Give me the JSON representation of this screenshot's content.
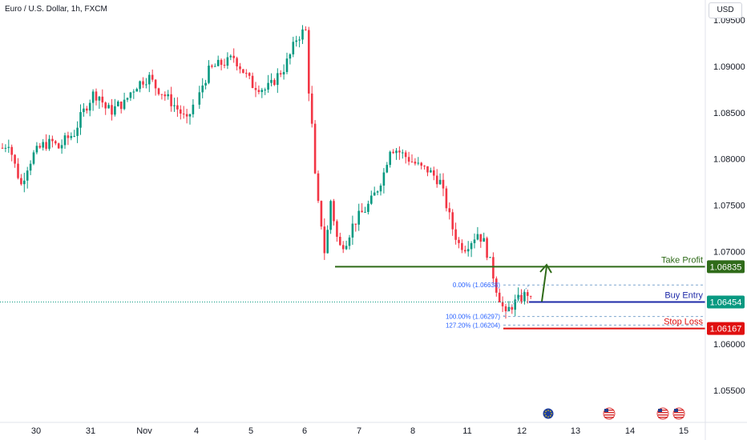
{
  "header": {
    "title": "Euro / U.S. Dollar, 1h, FXCM",
    "currency": "USD"
  },
  "chart_data": {
    "type": "candlestick",
    "symbol": "Euro / U.S. Dollar",
    "timeframe": "1h",
    "source": "FXCM",
    "x_ticks": [
      "30",
      "31",
      "Nov",
      "4",
      "5",
      "6",
      "7",
      "8",
      "11",
      "12",
      "13",
      "14",
      "15"
    ],
    "y_ticks": [
      "1.09500",
      "1.09000",
      "1.08500",
      "1.08000",
      "1.07500",
      "1.07000",
      "1.06000",
      "1.05500"
    ],
    "ylim": [
      1.0525,
      1.0975
    ],
    "price_path": [
      [
        0,
        1.0812
      ],
      [
        2,
        1.0818
      ],
      [
        4,
        1.0793
      ],
      [
        6,
        1.0772
      ],
      [
        8,
        1.0792
      ],
      [
        10,
        1.0805
      ],
      [
        13,
        1.0815
      ],
      [
        16,
        1.0818
      ],
      [
        18,
        1.0812
      ],
      [
        20,
        1.082
      ],
      [
        23,
        1.0828
      ],
      [
        25,
        1.0845
      ],
      [
        27,
        1.0858
      ],
      [
        29,
        1.087
      ],
      [
        31,
        1.0868
      ],
      [
        33,
        1.0855
      ],
      [
        35,
        1.0852
      ],
      [
        37,
        1.0858
      ],
      [
        39,
        1.086
      ],
      [
        41,
        1.0872
      ],
      [
        43,
        1.088
      ],
      [
        45,
        1.0885
      ],
      [
        47,
        1.0888
      ],
      [
        49,
        1.0878
      ],
      [
        51,
        1.0872
      ],
      [
        53,
        1.0865
      ],
      [
        55,
        1.0858
      ],
      [
        57,
        1.085
      ],
      [
        59,
        1.084
      ],
      [
        61,
        1.0858
      ],
      [
        63,
        1.088
      ],
      [
        65,
        1.0895
      ],
      [
        67,
        1.09
      ],
      [
        69,
        1.0903
      ],
      [
        71,
        1.0905
      ],
      [
        73,
        1.091
      ],
      [
        75,
        1.09
      ],
      [
        77,
        1.089
      ],
      [
        79,
        1.088
      ],
      [
        81,
        1.0878
      ],
      [
        83,
        1.0875
      ],
      [
        85,
        1.088
      ],
      [
        87,
        1.089
      ],
      [
        89,
        1.0898
      ],
      [
        91,
        1.0912
      ],
      [
        93,
        1.093
      ],
      [
        95,
        1.0937
      ],
      [
        96,
        1.0938
      ],
      [
        97,
        1.0875
      ],
      [
        98,
        1.0835
      ],
      [
        99,
        1.078
      ],
      [
        100,
        1.075
      ],
      [
        101,
        1.073
      ],
      [
        102,
        1.07
      ],
      [
        103,
        1.0722
      ],
      [
        104,
        1.0755
      ],
      [
        105,
        1.0735
      ],
      [
        106,
        1.0715
      ],
      [
        107,
        1.0705
      ],
      [
        109,
        1.0712
      ],
      [
        111,
        1.0728
      ],
      [
        113,
        1.0738
      ],
      [
        115,
        1.0745
      ],
      [
        117,
        1.0755
      ],
      [
        119,
        1.0768
      ],
      [
        121,
        1.0785
      ],
      [
        123,
        1.0812
      ],
      [
        125,
        1.081
      ],
      [
        127,
        1.0805
      ],
      [
        129,
        1.08
      ],
      [
        131,
        1.0795
      ],
      [
        133,
        1.079
      ],
      [
        135,
        1.0788
      ],
      [
        137,
        1.0782
      ],
      [
        139,
        1.0775
      ],
      [
        141,
        1.075
      ],
      [
        143,
        1.0725
      ],
      [
        145,
        1.0708
      ],
      [
        147,
        1.0705
      ],
      [
        149,
        1.0712
      ],
      [
        151,
        1.072
      ],
      [
        153,
        1.071
      ],
      [
        155,
        1.0688
      ],
      [
        157,
        1.066
      ],
      [
        159,
        1.064
      ],
      [
        160,
        1.063
      ],
      [
        161,
        1.0638
      ],
      [
        163,
        1.0645
      ],
      [
        165,
        1.065
      ],
      [
        167,
        1.0655
      ],
      [
        168,
        1.0646
      ]
    ],
    "current_price": "1.06454",
    "levels": [
      {
        "name": "Take Profit",
        "price": 1.06835,
        "label": "1.06835",
        "color": "#2f6b19"
      },
      {
        "name": "Buy Entry",
        "price": 1.06454,
        "label": "1.06454",
        "color": "#1e2aa8"
      },
      {
        "name": "Stop Loss",
        "price": 1.06167,
        "label": "1.06167",
        "color": "#e01010"
      }
    ],
    "fibonacci": [
      {
        "label": "0.00% (1.06638)",
        "price": 1.06638
      },
      {
        "label": "100.00% (1.06297)",
        "price": 1.06297
      },
      {
        "label": "127.20% (1.06204)",
        "price": 1.06204
      }
    ],
    "price_badge_colors": {
      "take_profit": "#2f6b19",
      "current": "#089981",
      "stop_loss": "#e01010"
    },
    "event_markers": [
      {
        "day": "12",
        "icon": "eu-flag-icon"
      },
      {
        "day": "13",
        "icon": "us-flag-icon"
      },
      {
        "day": "14",
        "icon": "us-flag-icon"
      },
      {
        "day": "15",
        "icon": "us-flag-icon"
      }
    ],
    "grid": false
  }
}
